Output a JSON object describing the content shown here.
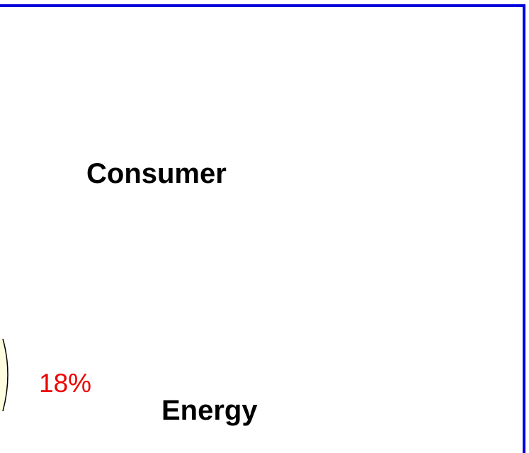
{
  "slide": {
    "labels": [
      "Consumer",
      "Energy"
    ],
    "value_label": "18%"
  }
}
